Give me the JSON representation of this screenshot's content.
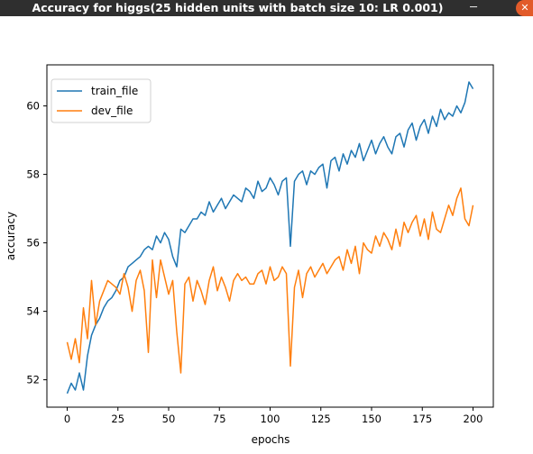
{
  "window": {
    "title": "Accuracy for higgs(25 hidden units with batch size 10: LR 0.001)",
    "minimize_glyph": "─",
    "close_glyph": "✕"
  },
  "colors": {
    "titlebar_bg": "#2f2f2f",
    "close_button": "#e25b2a",
    "train_series": "#1f77b4",
    "dev_series": "#ff7f0e"
  },
  "chart_data": {
    "type": "line",
    "title": "",
    "xlabel": "epochs",
    "ylabel": "accuracy",
    "xlim": [
      -10,
      210
    ],
    "ylim": [
      51.2,
      61.2
    ],
    "xticks": [
      0,
      25,
      50,
      75,
      100,
      125,
      150,
      175,
      200
    ],
    "yticks": [
      52,
      54,
      56,
      58,
      60
    ],
    "grid": false,
    "legend_position": "top-left",
    "series": [
      {
        "name": "train_file",
        "color": "#1f77b4",
        "x": [
          0,
          2,
          4,
          6,
          8,
          10,
          12,
          14,
          16,
          18,
          20,
          22,
          24,
          26,
          28,
          30,
          32,
          34,
          36,
          38,
          40,
          42,
          44,
          46,
          48,
          50,
          52,
          54,
          56,
          58,
          60,
          62,
          64,
          66,
          68,
          70,
          72,
          74,
          76,
          78,
          80,
          82,
          84,
          86,
          88,
          90,
          92,
          94,
          96,
          98,
          100,
          102,
          104,
          106,
          108,
          110,
          112,
          114,
          116,
          118,
          120,
          122,
          124,
          126,
          128,
          130,
          132,
          134,
          136,
          138,
          140,
          142,
          144,
          146,
          148,
          150,
          152,
          154,
          156,
          158,
          160,
          162,
          164,
          166,
          168,
          170,
          172,
          174,
          176,
          178,
          180,
          182,
          184,
          186,
          188,
          190,
          192,
          194,
          196,
          198,
          200
        ],
        "y": [
          51.6,
          51.9,
          51.7,
          52.2,
          51.7,
          52.7,
          53.3,
          53.6,
          53.8,
          54.1,
          54.3,
          54.4,
          54.6,
          54.9,
          55.0,
          55.3,
          55.4,
          55.5,
          55.6,
          55.8,
          55.9,
          55.8,
          56.2,
          56.0,
          56.3,
          56.1,
          55.6,
          55.3,
          56.4,
          56.3,
          56.5,
          56.7,
          56.7,
          56.9,
          56.8,
          57.2,
          56.9,
          57.1,
          57.3,
          57.0,
          57.2,
          57.4,
          57.3,
          57.2,
          57.6,
          57.5,
          57.3,
          57.8,
          57.5,
          57.6,
          57.9,
          57.7,
          57.4,
          57.8,
          57.9,
          55.9,
          57.8,
          58.0,
          58.1,
          57.7,
          58.1,
          58.0,
          58.2,
          58.3,
          57.6,
          58.4,
          58.5,
          58.1,
          58.6,
          58.3,
          58.7,
          58.5,
          58.9,
          58.4,
          58.7,
          59.0,
          58.6,
          58.9,
          59.1,
          58.8,
          58.6,
          59.1,
          59.2,
          58.8,
          59.3,
          59.5,
          59.0,
          59.4,
          59.6,
          59.2,
          59.7,
          59.4,
          59.9,
          59.6,
          59.8,
          59.7,
          60.0,
          59.8,
          60.1,
          60.7,
          60.5
        ]
      },
      {
        "name": "dev_file",
        "color": "#ff7f0e",
        "x": [
          0,
          2,
          4,
          6,
          8,
          10,
          12,
          14,
          16,
          18,
          20,
          22,
          24,
          26,
          28,
          30,
          32,
          34,
          36,
          38,
          40,
          42,
          44,
          46,
          48,
          50,
          52,
          54,
          56,
          58,
          60,
          62,
          64,
          66,
          68,
          70,
          72,
          74,
          76,
          78,
          80,
          82,
          84,
          86,
          88,
          90,
          92,
          94,
          96,
          98,
          100,
          102,
          104,
          106,
          108,
          110,
          112,
          114,
          116,
          118,
          120,
          122,
          124,
          126,
          128,
          130,
          132,
          134,
          136,
          138,
          140,
          142,
          144,
          146,
          148,
          150,
          152,
          154,
          156,
          158,
          160,
          162,
          164,
          166,
          168,
          170,
          172,
          174,
          176,
          178,
          180,
          182,
          184,
          186,
          188,
          190,
          192,
          194,
          196,
          198,
          200
        ],
        "y": [
          53.1,
          52.6,
          53.2,
          52.5,
          54.1,
          53.2,
          54.9,
          53.6,
          54.3,
          54.6,
          54.9,
          54.8,
          54.7,
          54.5,
          55.1,
          54.7,
          54.0,
          54.9,
          55.2,
          54.6,
          52.8,
          55.5,
          54.4,
          55.5,
          55.0,
          54.5,
          54.9,
          53.4,
          52.2,
          54.8,
          55.0,
          54.3,
          54.9,
          54.6,
          54.2,
          54.9,
          55.3,
          54.6,
          55.0,
          54.7,
          54.3,
          54.9,
          55.1,
          54.9,
          55.0,
          54.8,
          54.8,
          55.1,
          55.2,
          54.8,
          55.3,
          54.9,
          55.0,
          55.3,
          55.1,
          52.4,
          54.7,
          55.2,
          54.4,
          55.1,
          55.3,
          55.0,
          55.2,
          55.4,
          55.1,
          55.3,
          55.5,
          55.6,
          55.2,
          55.8,
          55.4,
          55.9,
          55.1,
          56.0,
          55.8,
          55.7,
          56.2,
          55.9,
          56.3,
          56.1,
          55.8,
          56.4,
          55.9,
          56.6,
          56.3,
          56.6,
          56.8,
          56.2,
          56.7,
          56.1,
          56.9,
          56.4,
          56.3,
          56.7,
          57.1,
          56.8,
          57.3,
          57.6,
          56.7,
          56.5,
          57.1
        ]
      }
    ]
  }
}
